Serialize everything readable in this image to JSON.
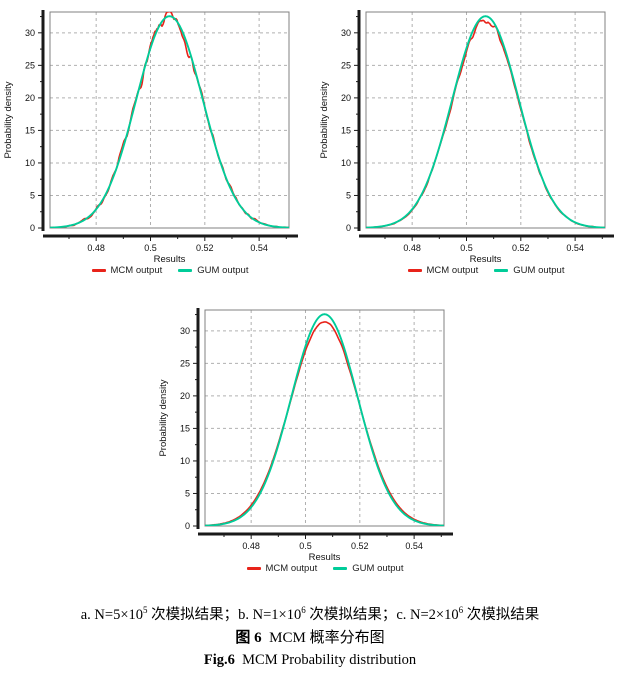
{
  "chart_data": [
    {
      "type": "line",
      "subfigure": "a",
      "title": "",
      "xlabel": "Results",
      "ylabel": "Probability density",
      "xlim": [
        0.463,
        0.551
      ],
      "ylim": [
        0,
        33.2
      ],
      "xticks": [
        0.48,
        0.5,
        0.52,
        0.54
      ],
      "xtick_labels": [
        "0.48",
        "0.5",
        "0.52",
        "0.54"
      ],
      "yticks": [
        0,
        5,
        10,
        15,
        20,
        25,
        30
      ],
      "x_minor_step": 0.01,
      "y_minor_step": 2.5,
      "grid": true,
      "legend_position": "bottom",
      "series": [
        {
          "name": "MCM output",
          "color": "#e8231a",
          "shape": "noisy_gaussian",
          "mean": 0.507,
          "sigma": 0.01226,
          "peak": 32.5,
          "peak_scale": 0.995,
          "noise_amp": 1.7,
          "seed": 7
        },
        {
          "name": "GUM output",
          "color": "#00cc99",
          "shape": "gaussian",
          "mean": 0.507,
          "sigma": 0.01226,
          "peak": 32.55
        }
      ]
    },
    {
      "type": "line",
      "subfigure": "b",
      "title": "",
      "xlabel": "Results",
      "ylabel": "Probability density",
      "xlim": [
        0.463,
        0.551
      ],
      "ylim": [
        0,
        33.2
      ],
      "xticks": [
        0.48,
        0.5,
        0.52,
        0.54
      ],
      "xtick_labels": [
        "0.48",
        "0.5",
        "0.52",
        "0.54"
      ],
      "yticks": [
        0,
        5,
        10,
        15,
        20,
        25,
        30
      ],
      "x_minor_step": 0.01,
      "y_minor_step": 2.5,
      "grid": true,
      "legend_position": "bottom",
      "series": [
        {
          "name": "MCM output",
          "color": "#e8231a",
          "shape": "noisy_gaussian",
          "mean": 0.507,
          "sigma": 0.01226,
          "peak": 32.5,
          "peak_scale": 0.982,
          "noise_amp": 0.7,
          "seed": 13
        },
        {
          "name": "GUM output",
          "color": "#00cc99",
          "shape": "gaussian",
          "mean": 0.507,
          "sigma": 0.01226,
          "peak": 32.55
        }
      ]
    },
    {
      "type": "line",
      "subfigure": "c",
      "title": "",
      "xlabel": "Results",
      "ylabel": "Probability density",
      "xlim": [
        0.463,
        0.551
      ],
      "ylim": [
        0,
        33.2
      ],
      "xticks": [
        0.48,
        0.5,
        0.52,
        0.54
      ],
      "xtick_labels": [
        "0.48",
        "0.5",
        "0.52",
        "0.54"
      ],
      "yticks": [
        0,
        5,
        10,
        15,
        20,
        25,
        30
      ],
      "x_minor_step": 0.01,
      "y_minor_step": 2.5,
      "grid": true,
      "legend_position": "bottom",
      "series": [
        {
          "name": "MCM output",
          "color": "#e8231a",
          "shape": "noisy_gaussian",
          "mean": 0.507,
          "sigma": 0.01226,
          "sigma_scale": 1.03,
          "peak": 32.5,
          "peak_scale": 0.966,
          "noise_amp": 0.18,
          "seed": 5
        },
        {
          "name": "GUM output",
          "color": "#00cc99",
          "shape": "gaussian",
          "mean": 0.507,
          "sigma": 0.01226,
          "peak": 32.55
        }
      ]
    }
  ],
  "caption": {
    "sub": [
      {
        "pre": "a. N=5×10",
        "sup": "5",
        "post": " 次模拟结果；"
      },
      {
        "pre": "b. N=1×10",
        "sup": "6",
        "post": " 次模拟结果；"
      },
      {
        "pre": "c. N=2×10",
        "sup": "6",
        "post": " 次模拟结果"
      }
    ],
    "fig_cn_bold": "图 6",
    "fig_cn_rest": "  MCM 概率分布图",
    "fig_en_bold": "Fig.6",
    "fig_en_rest": "  MCM Probability distribution"
  }
}
